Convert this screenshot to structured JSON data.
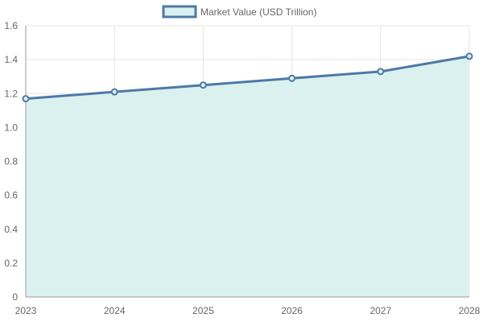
{
  "chart_data": {
    "type": "area",
    "title": "",
    "xlabel": "",
    "ylabel": "",
    "categories": [
      "2023",
      "2024",
      "2025",
      "2026",
      "2027",
      "2028"
    ],
    "series": [
      {
        "name": "Market Value (USD Trillion)",
        "values": [
          1.17,
          1.21,
          1.25,
          1.29,
          1.33,
          1.42
        ]
      }
    ],
    "ylim": [
      0,
      1.6
    ],
    "y_ticks": [
      "0",
      "0.2",
      "0.4",
      "0.6",
      "0.8",
      "1.0",
      "1.2",
      "1.4",
      "1.6"
    ],
    "grid": true,
    "legend_position": "top-center",
    "colors": {
      "line": "#4e79a7",
      "fill": "#dbf1ef",
      "grid": "#e5e5e5",
      "axis": "#999999",
      "text": "#666666"
    }
  }
}
